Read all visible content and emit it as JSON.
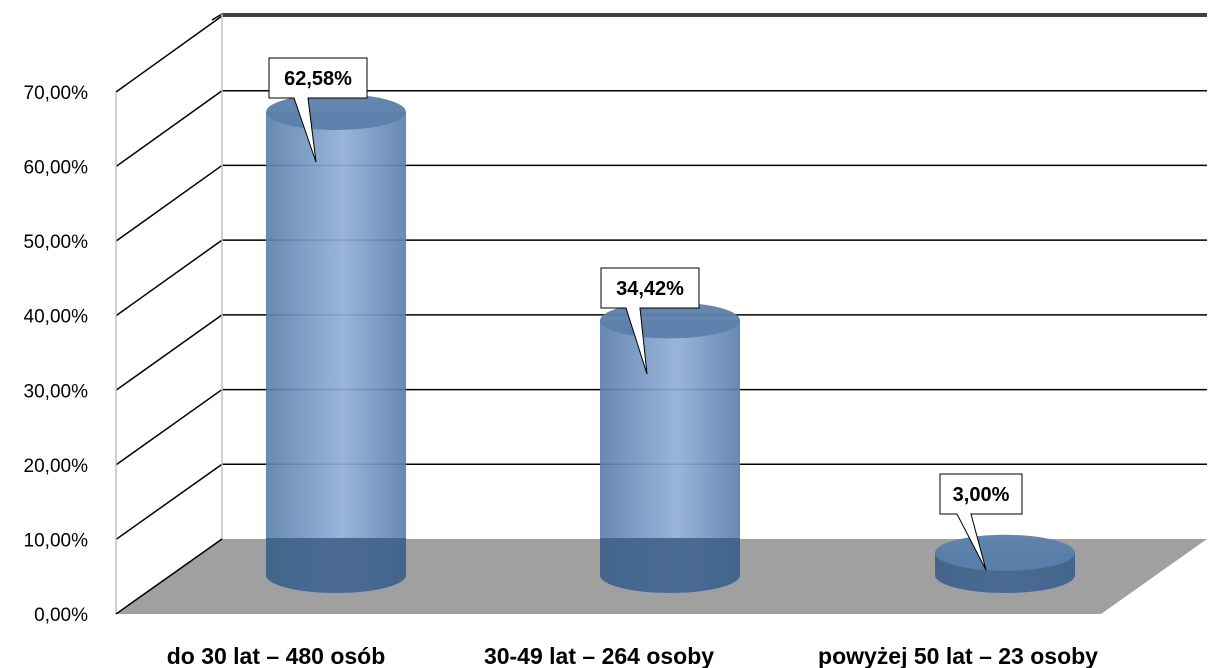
{
  "chart_data": {
    "type": "bar",
    "style": "3d-cylinder",
    "categories": [
      "do 30 lat – 480 osób",
      "30-49 lat – 264 osoby",
      "powyżej 50 lat – 23 osoby"
    ],
    "values": [
      62.58,
      34.42,
      3.0
    ],
    "data_labels": [
      "62,58%",
      "34,42%",
      "3,00%"
    ],
    "ylim": [
      0,
      70
    ],
    "y_ticks": [
      0,
      10,
      20,
      30,
      40,
      50,
      60,
      70
    ],
    "y_tick_labels": [
      "0,00%",
      "10,00%",
      "20,00%",
      "30,00%",
      "40,00%",
      "50,00%",
      "60,00%",
      "70,00%"
    ],
    "grid": true,
    "legend": "none",
    "title": "",
    "xlabel": "",
    "ylabel": "",
    "colors": {
      "bar": "#5b7fab",
      "bar_light": "#8fafd6",
      "bar_dark": "#3e5f86",
      "floor": "#a0a0a0",
      "grid": "#000000"
    }
  }
}
